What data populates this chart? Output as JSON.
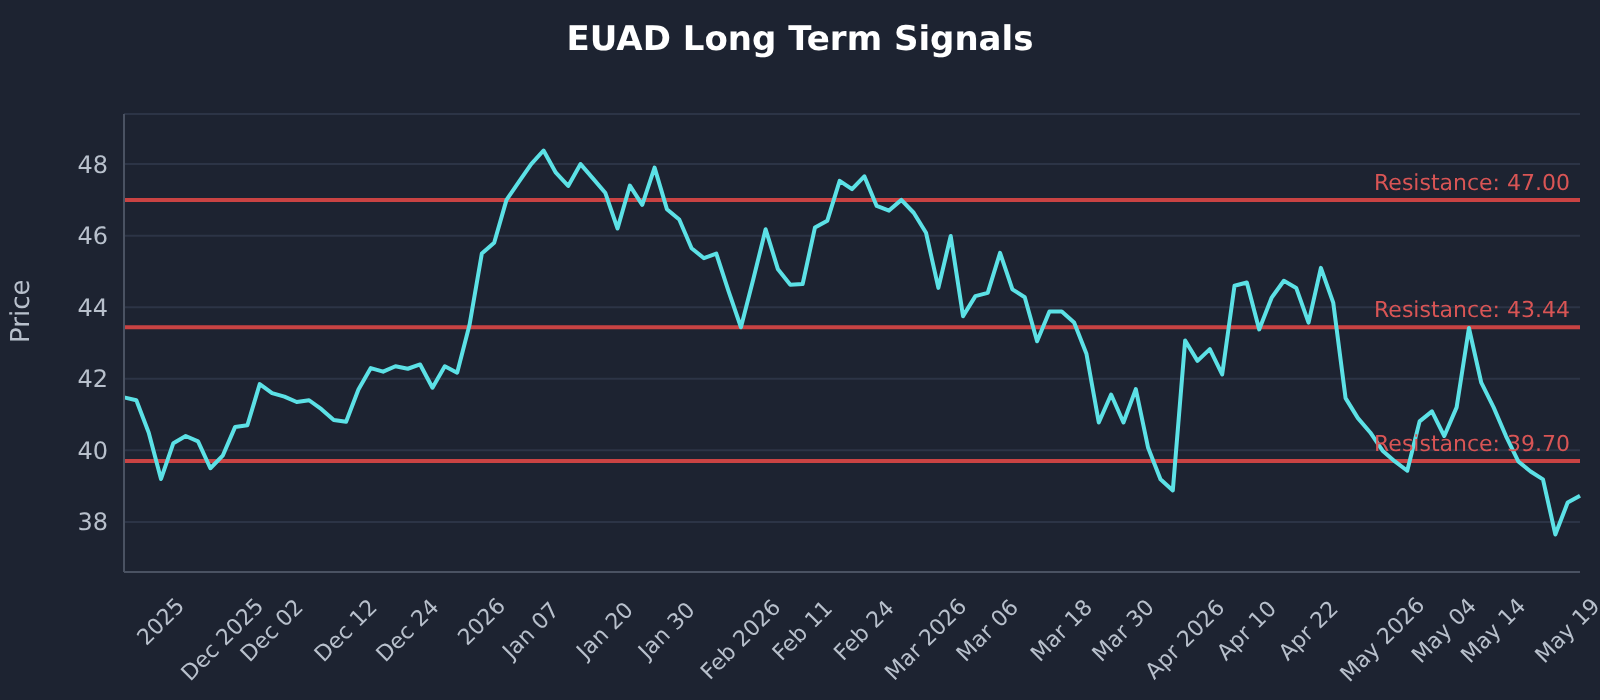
{
  "chart_data": {
    "type": "line",
    "title": "EUAD Long Term Signals",
    "ylabel": "Price",
    "categories": [
      null,
      null,
      null,
      "2025",
      null,
      null,
      null,
      null,
      "Dec 2025",
      null,
      null,
      null,
      "Dec 02",
      null,
      null,
      null,
      null,
      null,
      "Dec 12",
      null,
      null,
      null,
      null,
      "Dec 24",
      null,
      null,
      null,
      null,
      null,
      "2026",
      null,
      null,
      null,
      "Jan 07",
      null,
      null,
      null,
      null,
      null,
      "Jan 20",
      null,
      null,
      null,
      null,
      "Jan 30",
      null,
      null,
      null,
      null,
      null,
      "Feb 2026",
      null,
      null,
      null,
      null,
      "Feb 11",
      null,
      null,
      null,
      null,
      "Feb 24",
      null,
      null,
      null,
      null,
      "Mar 2026",
      null,
      null,
      null,
      null,
      "Mar 06",
      null,
      null,
      null,
      null,
      null,
      "Mar 18",
      null,
      null,
      null,
      null,
      "Mar 30",
      null,
      null,
      null,
      null,
      "Apr 2026",
      null,
      null,
      null,
      null,
      "Apr 10",
      null,
      null,
      null,
      null,
      "Apr 22",
      null,
      null,
      null,
      null,
      null,
      "May 2026",
      null,
      null,
      null,
      null,
      "May 04",
      null,
      null,
      null,
      "May 14",
      null,
      null,
      null,
      null,
      null,
      "May 19",
      null
    ],
    "series": [
      {
        "color": "#5ce1e6",
        "values": [
          41.48,
          41.4,
          40.5,
          39.2,
          40.2,
          40.4,
          40.25,
          39.5,
          39.85,
          40.65,
          40.7,
          41.85,
          41.6,
          41.5,
          41.35,
          41.4,
          41.15,
          40.85,
          40.8,
          41.7,
          42.3,
          42.2,
          42.35,
          42.28,
          42.4,
          41.75,
          42.35,
          42.17,
          43.5,
          45.5,
          45.8,
          47,
          47.5,
          48,
          48.38,
          47.76,
          47.39,
          48,
          47.6,
          47.2,
          46.2,
          47.4,
          46.86,
          47.9,
          46.74,
          46.45,
          45.65,
          45.37,
          45.5,
          44.44,
          43.44,
          44.78,
          46.18,
          45.06,
          44.63,
          44.65,
          46.23,
          46.42,
          47.53,
          47.3,
          47.66,
          46.83,
          46.7,
          47,
          46.64,
          46.08,
          44.54,
          45.99,
          43.75,
          44.31,
          44.4,
          45.52,
          44.5,
          44.28,
          43.05,
          43.88,
          43.88,
          43.57,
          42.7,
          40.78,
          41.56,
          40.78,
          41.71,
          40.07,
          39.19,
          38.88,
          43.07,
          42.5,
          42.83,
          42.12,
          44.6,
          44.69,
          43.38,
          44.26,
          44.74,
          44.54,
          43.57,
          45.1,
          44.13,
          41.46,
          40.9,
          40.5,
          39.99,
          39.69,
          39.43,
          40.81,
          41.09,
          40.4,
          41.2,
          43.42,
          41.89,
          41.2,
          40.4,
          39.69,
          39.41,
          39.19,
          37.65,
          38.54,
          38.73
        ]
      }
    ],
    "ylim": [
      36.6,
      49.4
    ],
    "yticks": [
      38,
      40,
      42,
      44,
      46,
      48
    ],
    "grid": "y",
    "marker": "none",
    "line_style": "solid",
    "ref_lines": [
      {
        "axis": "y",
        "value": 47,
        "label": "Resistance: 47.00",
        "color": "#c94343"
      },
      {
        "axis": "y",
        "value": 43.44,
        "label": "Resistance: 43.44",
        "color": "#c94343"
      },
      {
        "axis": "y",
        "value": 39.7,
        "label": "Resistance: 39.70",
        "color": "#c94343"
      }
    ]
  }
}
